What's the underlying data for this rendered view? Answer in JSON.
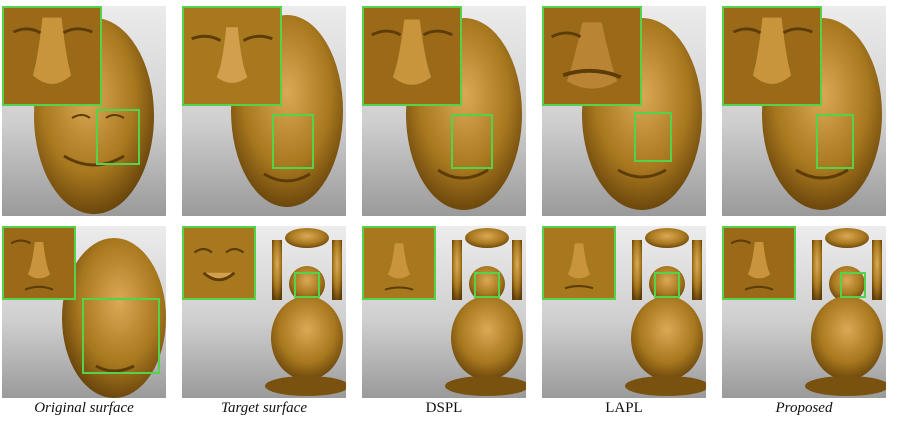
{
  "captions": {
    "original": "Original surface",
    "target": "Target surface",
    "dspl": "DSPL",
    "lapl": "LAPL",
    "proposed": "Proposed"
  },
  "colors": {
    "surface": "#a8781f",
    "surface_dark": "#5e3c08",
    "surface_light": "#d9a955",
    "highlight_box": "#55d14a",
    "background_top": "#ececec",
    "background_bottom": "#9a9a9a"
  }
}
